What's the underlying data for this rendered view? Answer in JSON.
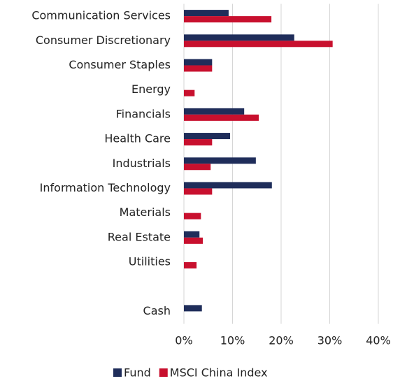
{
  "chart_data": {
    "type": "hbar",
    "categories": [
      "Communication Services",
      "Consumer Discretionary",
      "Consumer Staples",
      "Energy",
      "Financials",
      "Health Care",
      "Industrials",
      "Information Technology",
      "Materials",
      "Real Estate",
      "Utilities",
      null,
      "Cash"
    ],
    "series": [
      {
        "name": "Fund",
        "color": "#1f2d5a",
        "values": [
          9.2,
          22.7,
          5.8,
          0,
          12.4,
          9.5,
          14.8,
          18.1,
          0,
          3.2,
          0,
          null,
          3.7
        ]
      },
      {
        "name": "MSCI China Index",
        "color": "#c8102e",
        "values": [
          18.0,
          30.6,
          5.8,
          2.2,
          15.4,
          5.8,
          5.5,
          5.8,
          3.5,
          3.9,
          2.6,
          null,
          null
        ]
      }
    ],
    "xlim": [
      0,
      40
    ],
    "xticks": [
      {
        "value": 0,
        "label": "0%"
      },
      {
        "value": 10,
        "label": "10%"
      },
      {
        "value": 20,
        "label": "20%"
      },
      {
        "value": 30,
        "label": "30%"
      },
      {
        "value": 40,
        "label": "40%"
      }
    ],
    "grid": true,
    "legend": "bottom"
  }
}
